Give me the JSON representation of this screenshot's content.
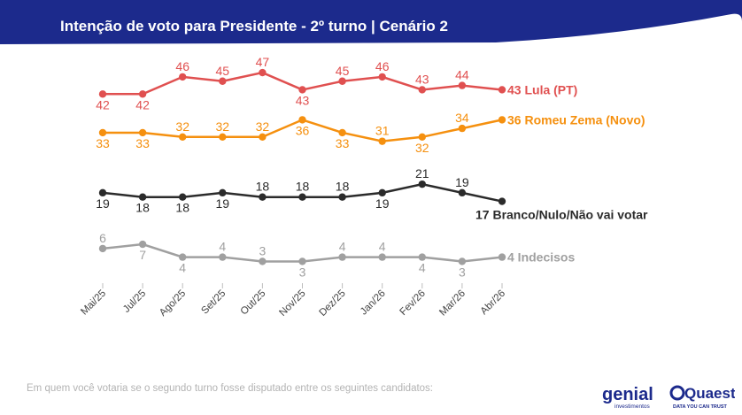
{
  "header": {
    "title": "Intenção de voto para Presidente - 2º turno | Cenário 2"
  },
  "footnote": "Em quem você votaria se o segundo turno fosse disputado entre os seguintes candidatos:",
  "logos": {
    "genial_main": "genial",
    "genial_sub": "investimentos",
    "quaest_main": "Quaest",
    "quaest_sub": "DATA YOU CAN TRUST"
  },
  "colors": {
    "header": "#1c2a8c",
    "lula": "#e05050",
    "zema": "#f5900f",
    "branco": "#2b2b2b",
    "indecisos": "#a0a0a0"
  },
  "chart_data": {
    "type": "line",
    "x": [
      "Mai/25",
      "Jul/25",
      "Ago/25",
      "Set/25",
      "Out/25",
      "Nov/25",
      "Dez/25",
      "Jan/26",
      "Fev/26",
      "Mar/26",
      "Abr/26"
    ],
    "ylim": [
      0,
      50
    ],
    "grid": false,
    "series": [
      {
        "name": "Lula (PT)",
        "end_label": "43 Lula (PT)",
        "color": "#e05050",
        "values": [
          42,
          42,
          46,
          45,
          47,
          43,
          45,
          46,
          43,
          44,
          43
        ],
        "label_pos": [
          "below",
          "below",
          "above",
          "above",
          "above",
          "below",
          "above",
          "above",
          "above",
          "above",
          null
        ]
      },
      {
        "name": "Romeu Zema (Novo)",
        "end_label": "36 Romeu Zema (Novo)",
        "color": "#f5900f",
        "values": [
          33,
          33,
          32,
          32,
          32,
          36,
          33,
          31,
          32,
          34,
          36
        ],
        "label_pos": [
          "below",
          "below",
          "above",
          "above",
          "above",
          "below",
          "below",
          "above",
          "below",
          "above",
          null
        ]
      },
      {
        "name": "Branco/Nulo/Não vai votar",
        "end_label": "17 Branco/Nulo/Não vai votar",
        "color": "#2b2b2b",
        "values": [
          19,
          18,
          18,
          19,
          18,
          18,
          18,
          19,
          21,
          19,
          17
        ],
        "label_pos": [
          "below",
          "below",
          "below",
          "below",
          "above",
          "above",
          "above",
          "below",
          "above",
          "above",
          null
        ]
      },
      {
        "name": "Indecisos",
        "end_label": "4 Indecisos",
        "color": "#a0a0a0",
        "values": [
          6,
          7,
          4,
          4,
          3,
          3,
          4,
          4,
          4,
          3,
          4
        ],
        "label_pos": [
          "above",
          "below",
          "below",
          "above",
          "above",
          "below",
          "above",
          "above",
          "below",
          "below",
          null
        ]
      }
    ]
  }
}
